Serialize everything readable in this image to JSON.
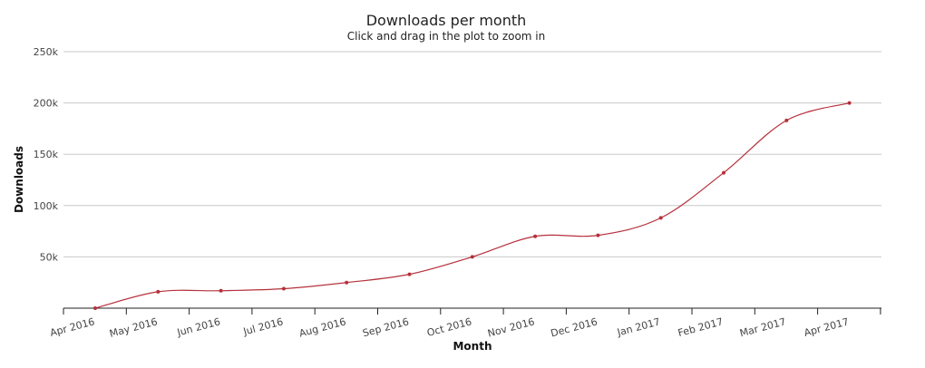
{
  "chart_data": {
    "type": "line",
    "title": "Downloads per month",
    "subtitle": "Click and drag in the plot to zoom in",
    "xlabel": "Month",
    "ylabel": "Downloads",
    "categories": [
      "Apr 2016",
      "May 2016",
      "Jun 2016",
      "Jul 2016",
      "Aug 2016",
      "Sep 2016",
      "Oct 2016",
      "Nov 2016",
      "Dec 2016",
      "Jan 2017",
      "Feb 2017",
      "Mar 2017",
      "Apr 2017"
    ],
    "series": [
      {
        "values": [
          0,
          16000,
          17000,
          19000,
          25000,
          33000,
          50000,
          70000,
          71000,
          88000,
          132000,
          183000,
          200000
        ],
        "color": "#b5303b"
      }
    ],
    "ylim": [
      0,
      250000
    ],
    "yticks": [
      50000,
      100000,
      150000,
      200000,
      250000
    ],
    "ytick_labels": [
      "50k",
      "100k",
      "150k",
      "200k",
      "250k"
    ],
    "grid": true,
    "legend": false
  }
}
